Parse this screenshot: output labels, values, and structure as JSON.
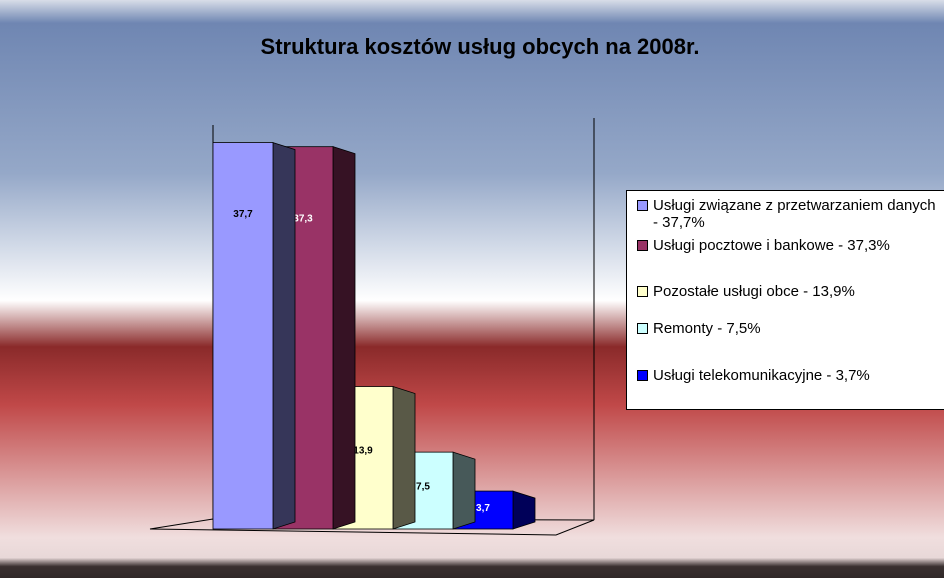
{
  "chart_data": {
    "type": "bar3d",
    "title": "Struktura kosztów usług obcych na 2008r.",
    "series": [
      {
        "name": "Usługi związane z przetwarzaniem danych - 37,7%",
        "color": "#9999ff",
        "values": [
          37.7
        ],
        "value_labels": [
          "37,7"
        ]
      },
      {
        "name": "Usługi pocztowe i bankowe - 37,3%",
        "color": "#993366",
        "values": [
          37.3
        ],
        "value_labels": [
          "37,3"
        ]
      },
      {
        "name": "Pozostałe usługi obce - 13,9%",
        "color": "#ffffcc",
        "values": [
          13.9
        ],
        "value_labels": [
          "13,9"
        ]
      },
      {
        "name": "Remonty - 7,5%",
        "color": "#ccffff",
        "values": [
          7.5
        ],
        "value_labels": [
          "7,5"
        ]
      },
      {
        "name": "Usługi telekomunikacyjne - 3,7%",
        "color": "#0000ff",
        "values": [
          3.7
        ],
        "value_labels": [
          "3,7"
        ]
      }
    ],
    "ylim": [
      0,
      40
    ],
    "legend": "right"
  }
}
